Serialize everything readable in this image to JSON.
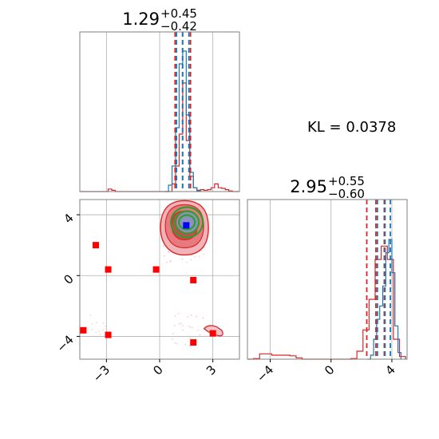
{
  "chart_data": {
    "type": "corner",
    "parameters": [
      {
        "title_value": "1.29",
        "title_upper": "+0.45",
        "title_lower": "−0.42",
        "median": 1.29,
        "lower_err": 0.42,
        "upper_err": 0.45,
        "range": [
          -4.5,
          4.5
        ],
        "ticks": [
          -3,
          0,
          3
        ],
        "tick_labels": [
          "−3",
          "0",
          "3"
        ],
        "series_a_quantiles": [
          0.87,
          1.29,
          1.74
        ],
        "series_b_quantiles": [
          0.95,
          1.3,
          1.65
        ],
        "series_a_hist": {
          "edges": [
            -4.5,
            -4.3,
            -4.1,
            -3.9,
            -3.7,
            -3.5,
            -3.3,
            -3.1,
            -2.9,
            -2.7,
            -2.5,
            -2.3,
            -2.1,
            -1.9,
            -1.7,
            -1.5,
            -1.3,
            -1.1,
            -0.9,
            -0.7,
            -0.5,
            -0.3,
            -0.1,
            0.1,
            0.3,
            0.5,
            0.7,
            0.9,
            1.1,
            1.3,
            1.5,
            1.7,
            1.9,
            2.1,
            2.3,
            2.5,
            2.7,
            2.9,
            3.1,
            3.3,
            3.5,
            3.7,
            3.9,
            4.1,
            4.3,
            4.5
          ],
          "counts": [
            0,
            0,
            0,
            0,
            0,
            0,
            0,
            0,
            0.2,
            0.1,
            0,
            0,
            0,
            0,
            0,
            0,
            0,
            0,
            0,
            0,
            0,
            0,
            0,
            0,
            0,
            0,
            0.6,
            2,
            4.5,
            8.5,
            4,
            1.2,
            0.3,
            0.1,
            0.15,
            0.1,
            0.15,
            0.3,
            0.6,
            0.3,
            0.25,
            0.15,
            0.05,
            0,
            0
          ]
        },
        "series_b_hist": {
          "edges": [
            0.3,
            0.5,
            0.7,
            0.9,
            1.1,
            1.3,
            1.5,
            1.7,
            1.9,
            2.1,
            2.3
          ],
          "counts": [
            0,
            0.5,
            2,
            5,
            10,
            11,
            6,
            1.5,
            0.3,
            0.05
          ]
        }
      },
      {
        "title_value": "2.95",
        "title_upper": "+0.55",
        "title_lower": "−0.60",
        "median": 2.95,
        "lower_err": 0.6,
        "upper_err": 0.55,
        "range": [
          -5.5,
          5.0
        ],
        "ticks": [
          -4,
          0,
          4
        ],
        "tick_labels": [
          "−4",
          "0",
          "4"
        ],
        "series_a_quantiles": [
          2.35,
          2.95,
          3.5
        ],
        "series_b_quantiles": [
          3.05,
          3.55,
          3.9
        ],
        "series_a_hist": {
          "edges": [
            -5.5,
            -5.1,
            -4.7,
            -4.3,
            -3.9,
            -3.5,
            -3.1,
            -2.7,
            -2.3,
            -1.9,
            -1.5,
            -1.1,
            -0.7,
            -0.3,
            0.1,
            0.5,
            0.9,
            1.3,
            1.7,
            2.1,
            2.5,
            2.9,
            3.3,
            3.7,
            4.1,
            4.5,
            4.9
          ],
          "counts": [
            0,
            0.05,
            0.4,
            0.4,
            0.3,
            0.3,
            0.3,
            0.25,
            0.1,
            0,
            0,
            0,
            0,
            0,
            0,
            0,
            0,
            0.05,
            0.6,
            2.2,
            4.5,
            7.5,
            8.5,
            7.5,
            1.5,
            0.2
          ]
        },
        "series_b_hist": {
          "edges": [
            2.4,
            2.6,
            2.8,
            3.0,
            3.2,
            3.4,
            3.6,
            3.8,
            4.0,
            4.2,
            4.4,
            4.6
          ],
          "counts": [
            0,
            0.3,
            1.5,
            3,
            4,
            5.5,
            8,
            9,
            6.5,
            2.5,
            0.5
          ]
        }
      }
    ],
    "kl_label": "KL = 0.0378",
    "scatter_points": [
      {
        "x": -3.6,
        "y": 2.0
      },
      {
        "x": -2.9,
        "y": 0.4
      },
      {
        "x": -0.2,
        "y": 0.4
      },
      {
        "x": 1.9,
        "y": -0.3
      },
      {
        "x": -4.3,
        "y": -3.6
      },
      {
        "x": -2.9,
        "y": -3.9
      },
      {
        "x": 1.9,
        "y": -4.4
      },
      {
        "x": 3.0,
        "y": -3.8
      }
    ],
    "truth_point": {
      "x": 1.5,
      "y": 3.3
    },
    "blob_center": {
      "x": 1.4,
      "y": 3.4
    },
    "secondary_blob_center": {
      "x": 3.0,
      "y": -3.7
    },
    "colors": {
      "series_a": "#d62728",
      "series_b": "#1f77b4",
      "contour_green": "#2ca02c",
      "truth": "#0000ff",
      "scatter": "#ff0000",
      "grid": "#b0b0b0",
      "frame": "#808080"
    }
  }
}
